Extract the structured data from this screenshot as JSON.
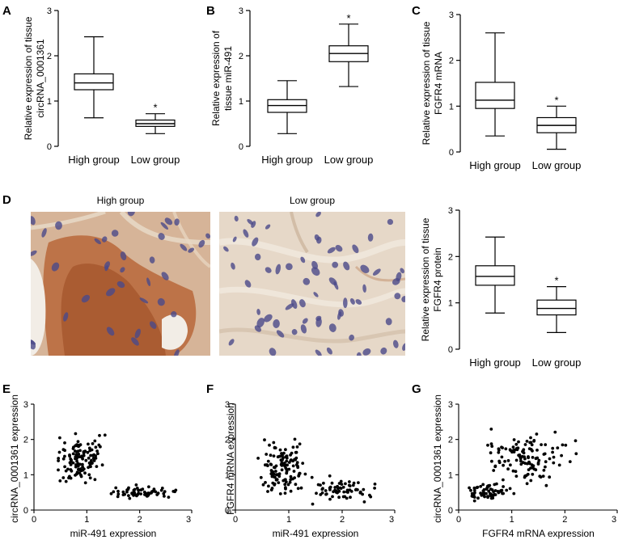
{
  "figure": {
    "panels": {
      "A": "A",
      "B": "B",
      "C": "C",
      "D": "D",
      "E": "E",
      "F": "F",
      "G": "G"
    },
    "photos": {
      "high_title": "High group",
      "low_title": "Low group",
      "colors": {
        "high_bg": "#d6b498",
        "high_stain": "#b8673a",
        "low_bg": "#e6d8c8",
        "nucleus": "#4b4a8a"
      }
    }
  },
  "chart_data": [
    {
      "id": "A",
      "type": "box",
      "ylabel_lines": [
        "Relative expression of tissue",
        "circRNA_0001361"
      ],
      "categories": [
        "High group",
        "Low group"
      ],
      "ylim": [
        0,
        3
      ],
      "yticks": [
        "0",
        "1",
        "2",
        "3"
      ],
      "boxes": [
        {
          "min": 0.63,
          "q1": 1.25,
          "median": 1.4,
          "q3": 1.6,
          "max": 2.42
        },
        {
          "min": 0.28,
          "q1": 0.44,
          "median": 0.5,
          "q3": 0.58,
          "max": 0.72
        }
      ],
      "significance": [
        "",
        "*"
      ]
    },
    {
      "id": "B",
      "type": "box",
      "ylabel_lines": [
        "Relative expression of",
        "tissue miR-491"
      ],
      "categories": [
        "High group",
        "Low group"
      ],
      "ylim": [
        0,
        3
      ],
      "yticks": [
        "0",
        "1",
        "2",
        "3"
      ],
      "boxes": [
        {
          "min": 0.28,
          "q1": 0.75,
          "median": 0.9,
          "q3": 1.03,
          "max": 1.45
        },
        {
          "min": 1.32,
          "q1": 1.87,
          "median": 2.05,
          "q3": 2.22,
          "max": 2.7
        }
      ],
      "significance": [
        "",
        "*"
      ]
    },
    {
      "id": "C",
      "type": "box",
      "ylabel_lines": [
        "Relative expression of tissue",
        "FGFR4 mRNA"
      ],
      "categories": [
        "High group",
        "Low group"
      ],
      "ylim": [
        0,
        3
      ],
      "yticks": [
        "0",
        "1",
        "2",
        "3"
      ],
      "boxes": [
        {
          "min": 0.35,
          "q1": 0.95,
          "median": 1.13,
          "q3": 1.52,
          "max": 2.6
        },
        {
          "min": 0.06,
          "q1": 0.42,
          "median": 0.58,
          "q3": 0.75,
          "max": 1.0
        }
      ],
      "significance": [
        "",
        "*"
      ]
    },
    {
      "id": "D",
      "type": "box",
      "ylabel_lines": [
        "Relative expression of tissue",
        "FGFR4 protein"
      ],
      "categories": [
        "High group",
        "Low group"
      ],
      "ylim": [
        0,
        3
      ],
      "yticks": [
        "0",
        "1",
        "2",
        "3"
      ],
      "boxes": [
        {
          "min": 0.78,
          "q1": 1.38,
          "median": 1.57,
          "q3": 1.8,
          "max": 2.42
        },
        {
          "min": 0.36,
          "q1": 0.74,
          "median": 0.88,
          "q3": 1.06,
          "max": 1.35
        }
      ],
      "significance": [
        "",
        "*"
      ]
    },
    {
      "id": "E",
      "type": "scatter",
      "xlabel": "miR-491 expression",
      "ylabel": "circRNA_0001361 expression",
      "xlim": [
        0,
        3
      ],
      "ylim": [
        0,
        3
      ],
      "xticks": [
        "0",
        "1",
        "2",
        "3"
      ],
      "yticks": [
        "0",
        "1",
        "2",
        "3"
      ],
      "clusters": [
        {
          "n": 125,
          "cx": 0.88,
          "cy": 1.45,
          "sx": 0.2,
          "sy": 0.32
        },
        {
          "n": 65,
          "cx": 2.05,
          "cy": 0.5,
          "sx": 0.3,
          "sy": 0.08
        }
      ]
    },
    {
      "id": "F",
      "type": "scatter",
      "xlabel": "miR-491 expression",
      "ylabel": "FGFR4 mRNA expression",
      "xlim": [
        0,
        3
      ],
      "ylim": [
        0,
        3
      ],
      "xticks": [
        "0",
        "1",
        "2",
        "3"
      ],
      "yticks": [
        "0",
        "1",
        "2",
        "3"
      ],
      "clusters": [
        {
          "n": 125,
          "cx": 0.88,
          "cy": 1.2,
          "sx": 0.2,
          "sy": 0.38
        },
        {
          "n": 65,
          "cx": 2.05,
          "cy": 0.57,
          "sx": 0.3,
          "sy": 0.18
        }
      ]
    },
    {
      "id": "G",
      "type": "scatter",
      "xlabel": "FGFR4 mRNA expression",
      "ylabel": "circRNA_0001361 expression",
      "xlim": [
        0,
        3
      ],
      "ylim": [
        0,
        3
      ],
      "xticks": [
        "0",
        "1",
        "2",
        "3"
      ],
      "yticks": [
        "0",
        "1",
        "2",
        "3"
      ],
      "clusters": [
        {
          "n": 65,
          "cx": 0.55,
          "cy": 0.5,
          "sx": 0.22,
          "sy": 0.1
        },
        {
          "n": 125,
          "cx": 1.25,
          "cy": 1.45,
          "sx": 0.38,
          "sy": 0.32
        }
      ]
    }
  ]
}
